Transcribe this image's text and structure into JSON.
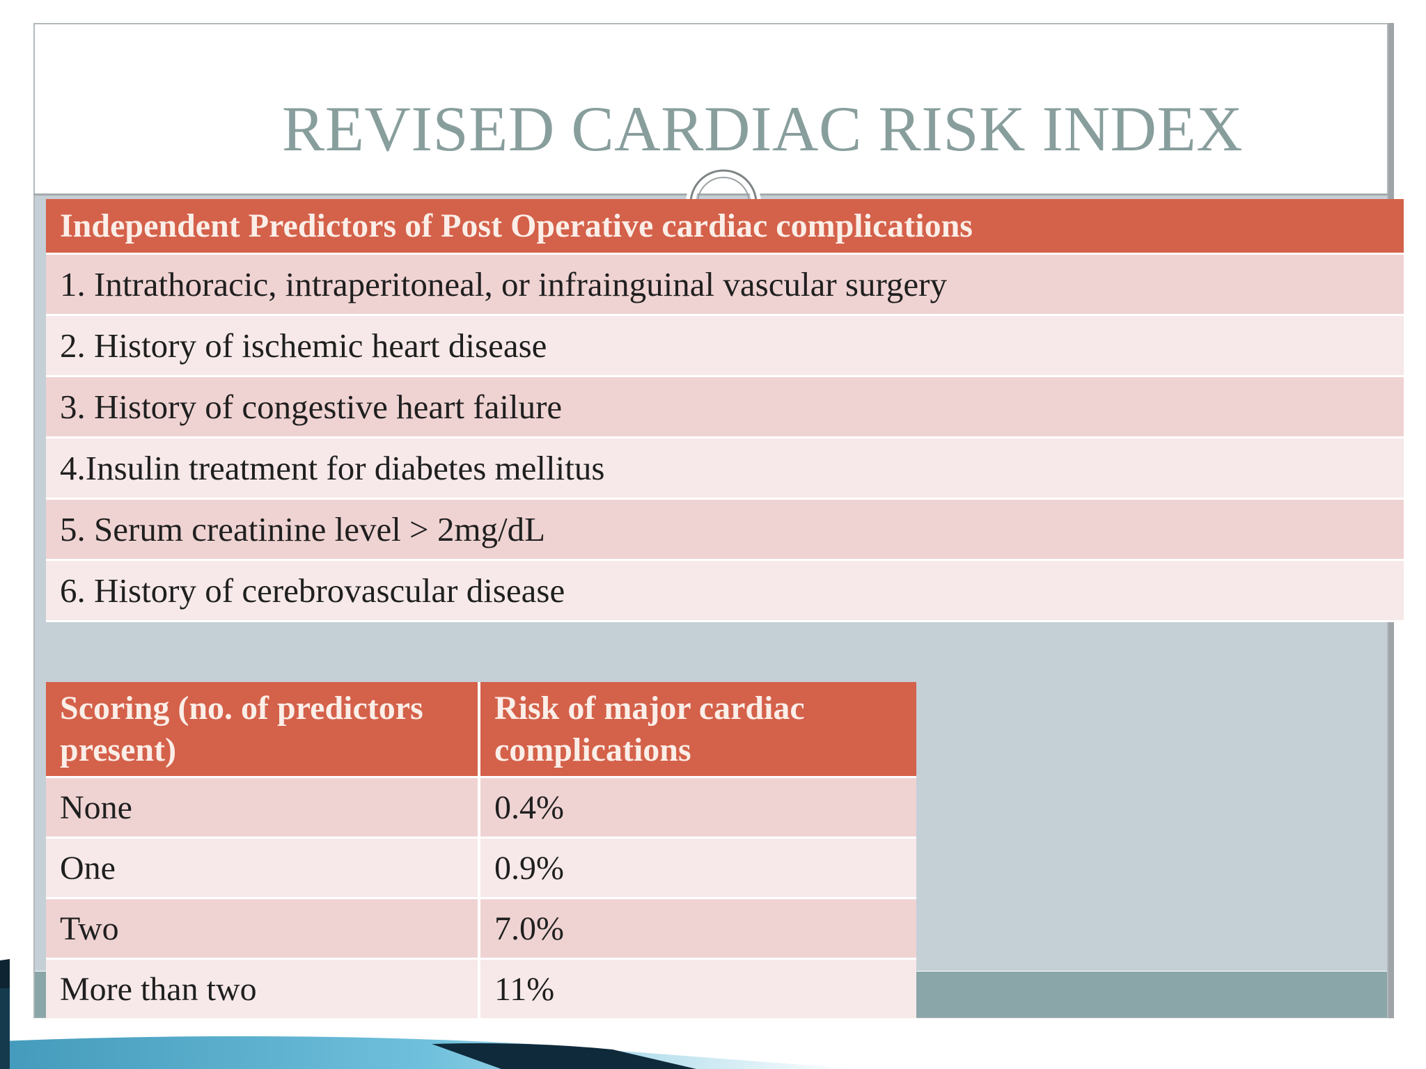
{
  "slide": {
    "title": "REVISED CARDIAC RISK INDEX"
  },
  "predictors_table": {
    "header": "Independent Predictors of Post Operative cardiac complications",
    "rows": [
      "1. Intrathoracic, intraperitoneal, or infrainguinal vascular surgery",
      "2. History of ischemic heart disease",
      "3. History of congestive heart failure",
      "4.Insulin treatment for diabetes mellitus",
      "5. Serum creatinine level > 2mg/dL",
      "6. History of cerebrovascular disease"
    ]
  },
  "scoring_table": {
    "header_col1": "Scoring (no. of predictors present)",
    "header_col2": "Risk of  major cardiac complications",
    "rows": [
      {
        "score": "None",
        "risk": "0.4%"
      },
      {
        "score": "One",
        "risk": "0.9%"
      },
      {
        "score": "Two",
        "risk": "7.0%"
      },
      {
        "score": "More than two",
        "risk": "11%"
      }
    ]
  },
  "colors": {
    "title": "#889e9d",
    "header_fill": "#d4614a",
    "row_dark": "#efd3d2",
    "row_light": "#f7e9e9",
    "content_bg": "#c5cfd6",
    "swoosh_dark": "#0f2a3a",
    "swoosh_teal": "#3fa6c8"
  },
  "icons": {
    "title_ornament": "ring-ornament-icon",
    "bottom_decoration": "swoosh-decoration"
  }
}
